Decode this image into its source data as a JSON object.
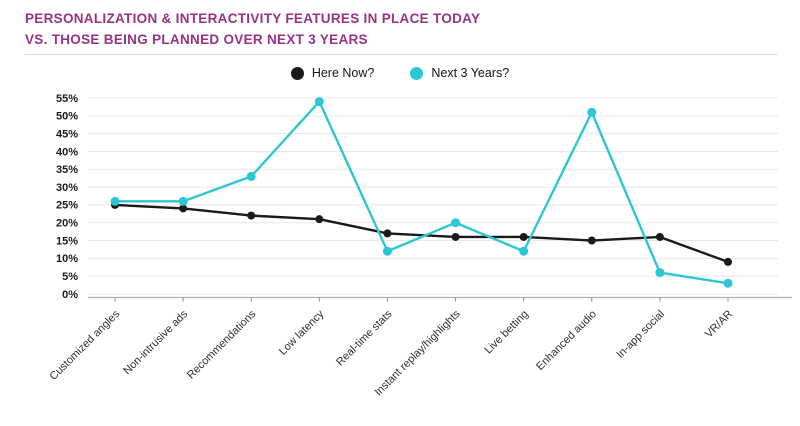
{
  "header": {
    "title_line1": "PERSONALIZATION & INTERACTIVITY FEATURES IN PLACE TODAY",
    "title_line2": "VS. THOSE BEING PLANNED OVER NEXT 3 YEARS"
  },
  "colors": {
    "title_text": "#993286",
    "here_now_line": "#1a1a1a",
    "next_3_years_line": "#2cc7d2",
    "gridline": "#e8e8e8",
    "axis_baseline": "#b6aea8",
    "y_tick_text": "#1b1b1b",
    "x_label_text": "#2f2f2f",
    "divider": "#d8d8d8"
  },
  "chart_data": {
    "type": "line",
    "title": "Personalization & interactivity features in place today vs. those being planned over next 3 years",
    "categories": [
      "Customized angles",
      "Non-intrusive ads",
      "Recommendations",
      "Low latency",
      "Real-time stats",
      "Instant replay/highlights",
      "Live betting",
      "Enhanced audio",
      "In-app social",
      "VR/AR"
    ],
    "series": [
      {
        "name": "Here Now?",
        "color": "#1a1a1a",
        "marker": "circle",
        "values": [
          25,
          24,
          22,
          21,
          17,
          16,
          16,
          15,
          16,
          9
        ]
      },
      {
        "name": "Next 3 Years?",
        "color": "#2cc7d2",
        "marker": "circle",
        "values": [
          26,
          26,
          33,
          54,
          12,
          20,
          12,
          51,
          6,
          3
        ]
      }
    ],
    "xlabel": "",
    "ylabel": "",
    "ylim": [
      0,
      55
    ],
    "ytick_step": 5,
    "ytick_suffix": "%",
    "grid": true,
    "legend_position": "top-center",
    "x_label_rotation_deg": -45
  }
}
